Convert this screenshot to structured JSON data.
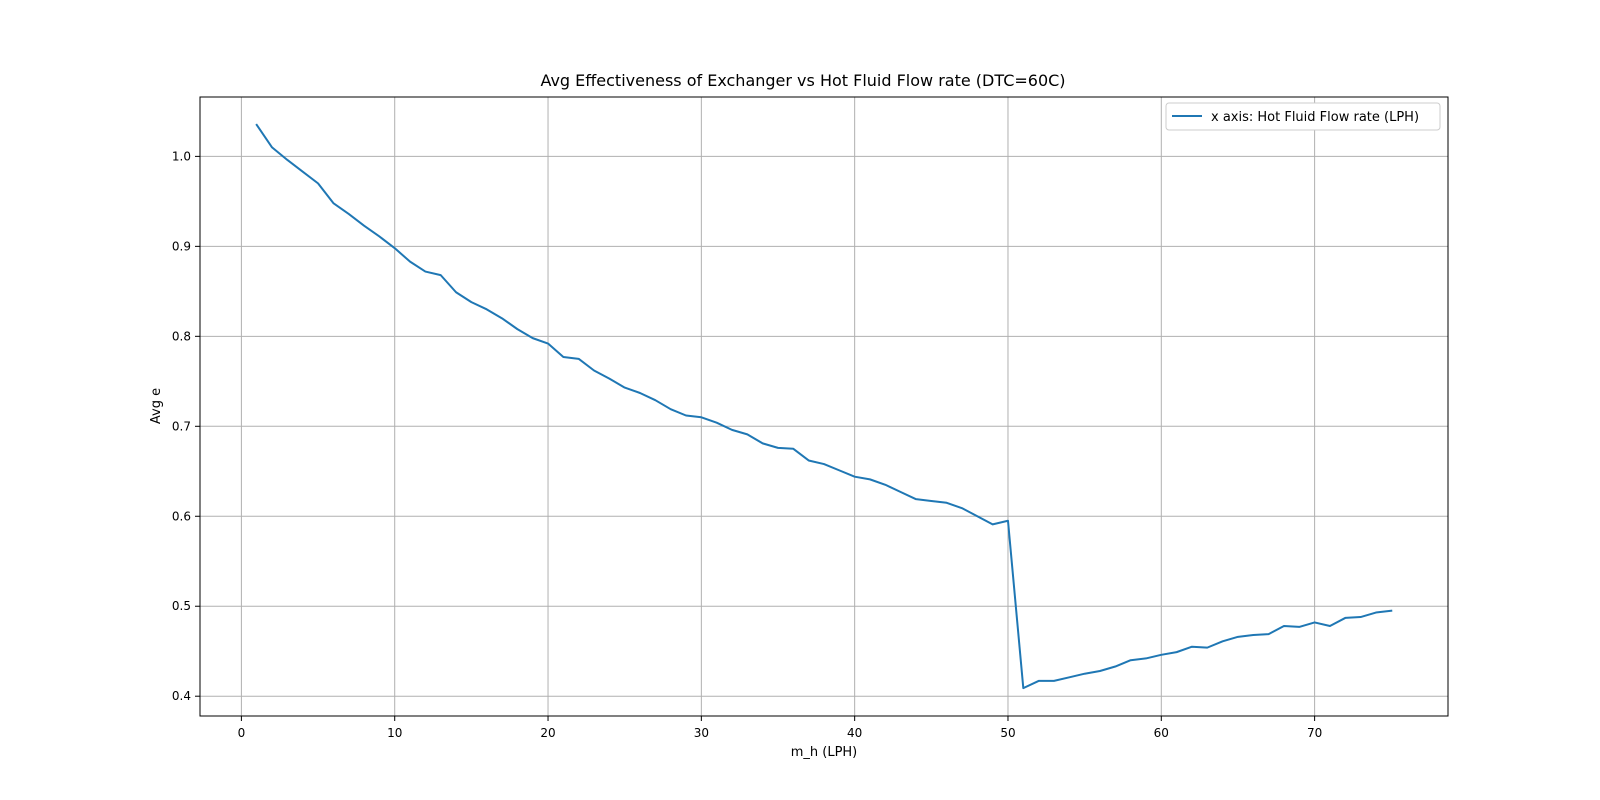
{
  "chart_data": {
    "type": "line",
    "title": "Avg Effectiveness of Exchanger vs Hot Fluid Flow rate (DTC=60C)",
    "xlabel": "m_h (LPH)",
    "ylabel": "Avg e",
    "xlim": [
      -2.7,
      78.7
    ],
    "ylim": [
      0.378,
      1.066
    ],
    "xticks": [
      0,
      10,
      20,
      30,
      40,
      50,
      60,
      70
    ],
    "yticks": [
      0.4,
      0.5,
      0.6,
      0.7,
      0.8,
      0.9,
      1.0
    ],
    "xtick_labels": [
      "0",
      "10",
      "20",
      "30",
      "40",
      "50",
      "60",
      "70"
    ],
    "ytick_labels": [
      "0.4",
      "0.5",
      "0.6",
      "0.7",
      "0.8",
      "0.9",
      "1.0"
    ],
    "grid": true,
    "legend_position": "top-right",
    "series": [
      {
        "name": "x axis: Hot Fluid Flow rate (LPH)",
        "color": "#1f77b4",
        "x": [
          1,
          2,
          3,
          4,
          5,
          6,
          7,
          8,
          9,
          10,
          11,
          12,
          13,
          14,
          15,
          16,
          17,
          18,
          19,
          20,
          21,
          22,
          23,
          24,
          25,
          26,
          27,
          28,
          29,
          30,
          31,
          32,
          33,
          34,
          35,
          36,
          37,
          38,
          39,
          40,
          41,
          42,
          43,
          44,
          45,
          46,
          47,
          48,
          49,
          50,
          51,
          52,
          53,
          54,
          55,
          56,
          57,
          58,
          59,
          60,
          61,
          62,
          63,
          64,
          65,
          66,
          67,
          68,
          69,
          70,
          71,
          72,
          73,
          74,
          75
        ],
        "y": [
          1.035,
          1.01,
          0.996,
          0.983,
          0.97,
          0.948,
          0.936,
          0.923,
          0.911,
          0.898,
          0.883,
          0.872,
          0.868,
          0.849,
          0.838,
          0.83,
          0.82,
          0.808,
          0.798,
          0.792,
          0.777,
          0.775,
          0.762,
          0.753,
          0.743,
          0.737,
          0.729,
          0.719,
          0.712,
          0.71,
          0.704,
          0.696,
          0.691,
          0.681,
          0.676,
          0.675,
          0.662,
          0.658,
          0.651,
          0.644,
          0.641,
          0.635,
          0.627,
          0.619,
          0.617,
          0.615,
          0.609,
          0.6,
          0.591,
          0.595,
          0.409,
          0.417,
          0.417,
          0.421,
          0.425,
          0.428,
          0.433,
          0.44,
          0.442,
          0.446,
          0.449,
          0.455,
          0.454,
          0.461,
          0.466,
          0.468,
          0.469,
          0.478,
          0.477,
          0.482,
          0.478,
          0.487,
          0.488,
          0.493,
          0.495
        ]
      }
    ]
  }
}
